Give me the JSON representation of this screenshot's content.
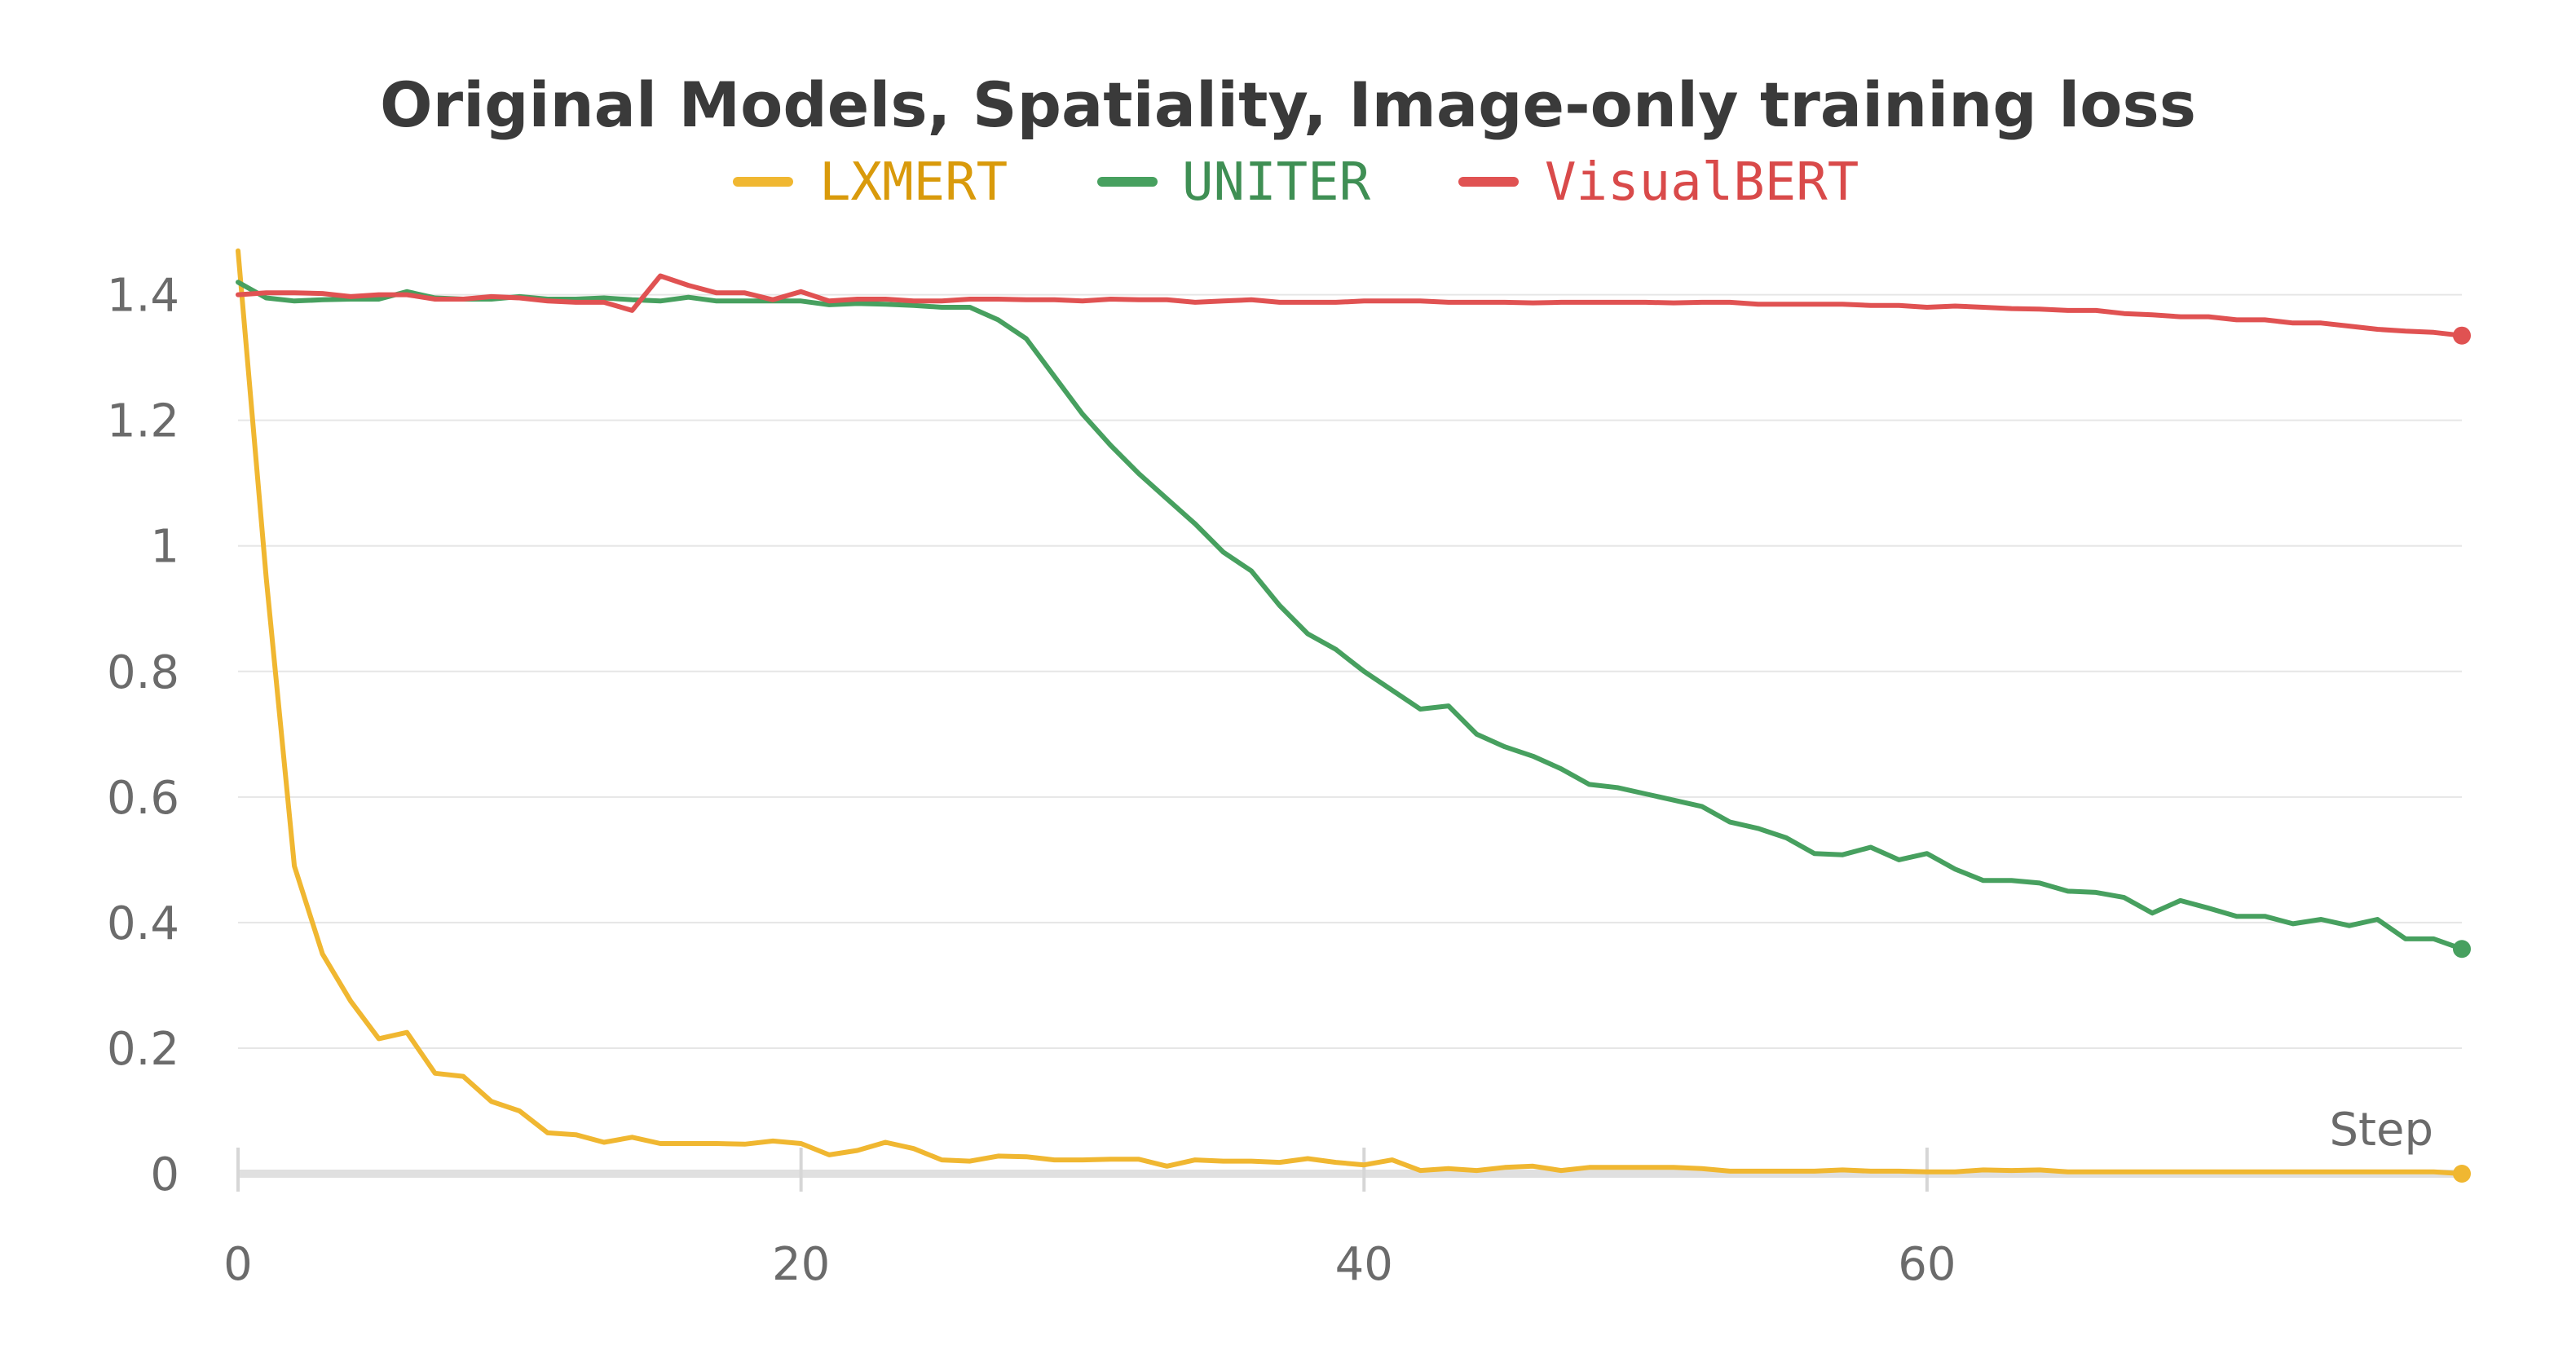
{
  "chart_data": {
    "type": "line",
    "title": "Original Models, Spatiality, Image-only training loss",
    "xlabel": "Step",
    "ylabel": "",
    "xlim": [
      0,
      79
    ],
    "ylim": [
      0,
      1.48
    ],
    "x_ticks": [
      0,
      20,
      40,
      60
    ],
    "y_ticks": [
      0,
      0.2,
      0.4,
      0.6,
      0.8,
      1,
      1.2,
      1.4
    ],
    "x_tick_labels": [
      "0",
      "20",
      "40",
      "60"
    ],
    "y_tick_labels": [
      "0",
      "0.2",
      "0.4",
      "0.6",
      "0.8",
      "1",
      "1.2",
      "1.4"
    ],
    "grid": true,
    "legend_position": "top-center",
    "series": [
      {
        "name": "LXMERT",
        "color": "#f0b731",
        "legend_text_color": "#d99a0b",
        "values": [
          1.47,
          0.95,
          0.49,
          0.35,
          0.275,
          0.215,
          0.225,
          0.16,
          0.155,
          0.115,
          0.1,
          0.065,
          0.062,
          0.05,
          0.058,
          0.048,
          0.048,
          0.048,
          0.047,
          0.052,
          0.048,
          0.03,
          0.037,
          0.05,
          0.04,
          0.022,
          0.02,
          0.028,
          0.027,
          0.022,
          0.022,
          0.023,
          0.023,
          0.012,
          0.022,
          0.02,
          0.02,
          0.018,
          0.024,
          0.018,
          0.014,
          0.022,
          0.005,
          0.008,
          0.005,
          0.01,
          0.012,
          0.005,
          0.01,
          0.01,
          0.01,
          0.01,
          0.008,
          0.004,
          0.004,
          0.004,
          0.004,
          0.006,
          0.004,
          0.004,
          0.003,
          0.003,
          0.006,
          0.005,
          0.006,
          0.003,
          0.003,
          0.003,
          0.003,
          0.003,
          0.003,
          0.003,
          0.003,
          0.003,
          0.003,
          0.003,
          0.003,
          0.003,
          0.003,
          0.0
        ]
      },
      {
        "name": "UNITER",
        "color": "#47a05f",
        "legend_text_color": "#3f8f54",
        "values": [
          1.42,
          1.395,
          1.39,
          1.392,
          1.393,
          1.393,
          1.405,
          1.395,
          1.393,
          1.393,
          1.397,
          1.393,
          1.393,
          1.395,
          1.392,
          1.39,
          1.396,
          1.39,
          1.39,
          1.39,
          1.39,
          1.384,
          1.386,
          1.385,
          1.383,
          1.38,
          1.38,
          1.36,
          1.33,
          1.27,
          1.21,
          1.16,
          1.115,
          1.075,
          1.035,
          0.99,
          0.96,
          0.905,
          0.86,
          0.835,
          0.8,
          0.77,
          0.74,
          0.745,
          0.7,
          0.68,
          0.665,
          0.645,
          0.62,
          0.615,
          0.605,
          0.595,
          0.585,
          0.56,
          0.55,
          0.535,
          0.51,
          0.508,
          0.52,
          0.5,
          0.51,
          0.485,
          0.467,
          0.467,
          0.463,
          0.45,
          0.448,
          0.44,
          0.415,
          0.435,
          0.423,
          0.41,
          0.41,
          0.398,
          0.405,
          0.395,
          0.405,
          0.374,
          0.374,
          0.358
        ]
      },
      {
        "name": "VisualBERT",
        "color": "#e05252",
        "legend_text_color": "#d94a4a",
        "values": [
          1.4,
          1.403,
          1.403,
          1.402,
          1.397,
          1.4,
          1.4,
          1.393,
          1.393,
          1.397,
          1.395,
          1.39,
          1.388,
          1.388,
          1.375,
          1.43,
          1.415,
          1.403,
          1.403,
          1.392,
          1.405,
          1.39,
          1.393,
          1.393,
          1.39,
          1.39,
          1.393,
          1.393,
          1.392,
          1.392,
          1.39,
          1.393,
          1.392,
          1.392,
          1.388,
          1.39,
          1.392,
          1.388,
          1.388,
          1.388,
          1.39,
          1.39,
          1.39,
          1.388,
          1.388,
          1.388,
          1.387,
          1.388,
          1.388,
          1.388,
          1.388,
          1.387,
          1.388,
          1.388,
          1.385,
          1.385,
          1.385,
          1.385,
          1.383,
          1.383,
          1.38,
          1.382,
          1.38,
          1.378,
          1.377,
          1.375,
          1.375,
          1.37,
          1.368,
          1.365,
          1.365,
          1.36,
          1.36,
          1.355,
          1.355,
          1.35,
          1.345,
          1.342,
          1.34,
          1.335
        ]
      }
    ]
  }
}
